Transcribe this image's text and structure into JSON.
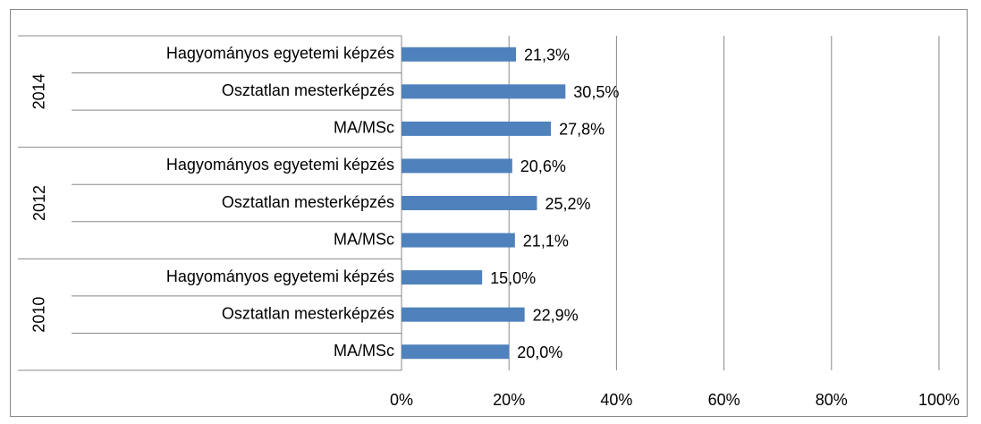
{
  "chart_data": {
    "type": "bar",
    "orientation": "horizontal",
    "group_labels": [
      "2014",
      "2012",
      "2010"
    ],
    "categories": [
      "Hagyományos egyetemi képzés",
      "Osztatlan mesterképzés",
      "MA/MSc",
      "Hagyományos egyetemi képzés",
      "Osztatlan mesterképzés",
      "MA/MSc",
      "Hagyományos egyetemi képzés",
      "Osztatlan mesterképzés",
      "MA/MSc"
    ],
    "values": [
      21.3,
      30.5,
      27.8,
      20.6,
      25.2,
      21.1,
      15.0,
      22.9,
      20.0
    ],
    "value_labels": [
      "21,3%",
      "30,5%",
      "27,8%",
      "20,6%",
      "25,2%",
      "21,1%",
      "15,0%",
      "22,9%",
      "20,0%"
    ],
    "color": "#4f81bd",
    "xlim": [
      0,
      100
    ],
    "xticks": [
      {
        "value": 0,
        "label": "0%"
      },
      {
        "value": 20,
        "label": "20%"
      },
      {
        "value": 40,
        "label": "40%"
      },
      {
        "value": 60,
        "label": "60%"
      },
      {
        "value": 80,
        "label": "80%"
      },
      {
        "value": 100,
        "label": "100%"
      }
    ],
    "grid": true
  }
}
